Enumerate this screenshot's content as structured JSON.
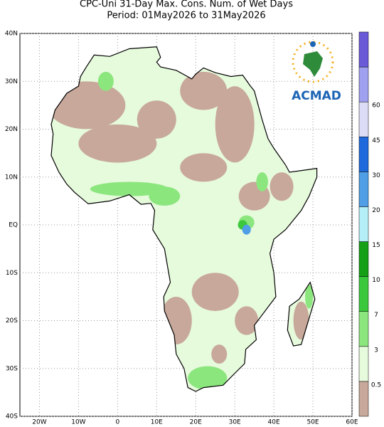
{
  "map": {
    "title": "CPC-Uni 31-Day Max. Cons. Num. of Wet Days",
    "subtitle": "Period: 01May2026 to 31May2026",
    "logo_text": "ACMAD",
    "xlim": [
      -25,
      60
    ],
    "ylim": [
      -40,
      40
    ],
    "xticks": [
      {
        "value": -20,
        "label": "20W"
      },
      {
        "value": -10,
        "label": "10W"
      },
      0,
      {
        "value": 10,
        "label": "10E"
      },
      {
        "value": 20,
        "label": "20E"
      },
      {
        "value": 30,
        "label": "30E"
      },
      {
        "value": 40,
        "label": "40E"
      },
      {
        "value": 50,
        "label": "50E"
      },
      {
        "value": 60,
        "label": "60E"
      }
    ],
    "yticks": [
      {
        "value": 40,
        "label": "40N"
      },
      {
        "value": 30,
        "label": "30N"
      },
      {
        "value": 20,
        "label": "20N"
      },
      {
        "value": 10,
        "label": "10N"
      },
      {
        "value": 0,
        "label": "EQ"
      },
      {
        "value": -10,
        "label": "10S"
      },
      {
        "value": -20,
        "label": "20S"
      },
      {
        "value": -30,
        "label": "30S"
      },
      {
        "value": -40,
        "label": "40S"
      }
    ],
    "legend": {
      "levels": [
        0.5,
        3,
        7,
        10,
        15,
        20,
        30,
        45,
        60
      ],
      "colors": [
        "#c8a89a",
        "#e6fadc",
        "#8ce67e",
        "#3cc83c",
        "#16a016",
        "#b4eef6",
        "#4f9ee6",
        "#1e6adc",
        "#dcdcf6",
        "#a0a0f0",
        "#6a5ad8"
      ]
    }
  }
}
